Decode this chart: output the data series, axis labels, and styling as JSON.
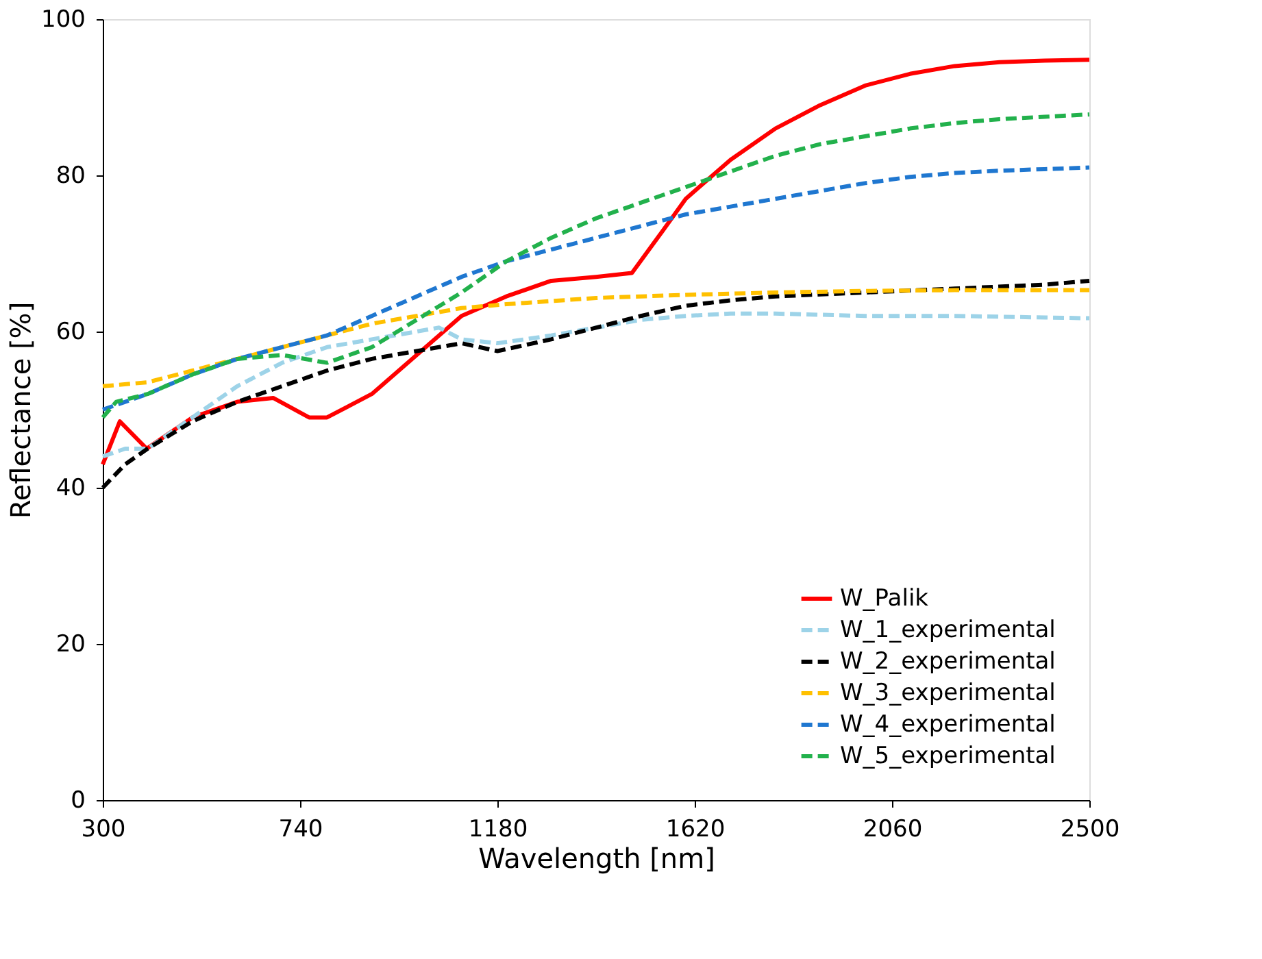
{
  "chart_data": {
    "type": "line",
    "xlabel": "Wavelength [nm]",
    "ylabel": "Reflectance [%]",
    "xlim": [
      300,
      2500
    ],
    "ylim": [
      0,
      100
    ],
    "xticks": [
      300,
      740,
      1180,
      1620,
      2060,
      2500
    ],
    "yticks": [
      0,
      20,
      40,
      60,
      80,
      100
    ],
    "grid": false,
    "legend": "bottom right",
    "marker": "none",
    "series": [
      {
        "name": "W_Palik",
        "color": "#ff0000",
        "line_style": "solid",
        "x": [
          300,
          338,
          398,
          500,
          600,
          680,
          760,
          800,
          900,
          1000,
          1100,
          1200,
          1300,
          1400,
          1480,
          1550,
          1600,
          1700,
          1800,
          1900,
          2000,
          2100,
          2200,
          2300,
          2400,
          2500
        ],
        "values": [
          43,
          48.5,
          45,
          49,
          51,
          51.5,
          49,
          49,
          52,
          57,
          62,
          64.5,
          66.5,
          67,
          67.5,
          73,
          77,
          82,
          86,
          89,
          91.5,
          93,
          94,
          94.5,
          94.7,
          94.8
        ]
      },
      {
        "name": "W_1_experimental",
        "color": "#9dd3e8",
        "line_style": "dashed",
        "x": [
          300,
          350,
          400,
          500,
          600,
          700,
          800,
          900,
          1000,
          1050,
          1100,
          1180,
          1300,
          1400,
          1500,
          1600,
          1700,
          1800,
          2000,
          2200,
          2500
        ],
        "values": [
          44,
          45,
          45,
          49,
          53,
          56,
          58,
          59,
          60,
          60.5,
          59,
          58.5,
          59.5,
          60.5,
          61.5,
          62,
          62.3,
          62.3,
          62,
          62,
          61.7
        ]
      },
      {
        "name": "W_2_experimental",
        "color": "#000000",
        "line_style": "dashed",
        "x": [
          300,
          350,
          400,
          500,
          600,
          700,
          800,
          900,
          1000,
          1100,
          1180,
          1300,
          1400,
          1500,
          1600,
          1700,
          1800,
          2000,
          2200,
          2400,
          2500
        ],
        "values": [
          40,
          43,
          45,
          48.5,
          51,
          53,
          55,
          56.5,
          57.5,
          58.5,
          57.5,
          59,
          60.5,
          62,
          63.3,
          64,
          64.5,
          65,
          65.5,
          66,
          66.5
        ]
      },
      {
        "name": "W_3_experimental",
        "color": "#ffc000",
        "line_style": "dashed",
        "x": [
          300,
          400,
          500,
          600,
          700,
          800,
          900,
          1000,
          1100,
          1200,
          1400,
          1600,
          1800,
          2000,
          2200,
          2500
        ],
        "values": [
          53,
          53.5,
          55,
          56.5,
          58,
          59.5,
          61,
          62,
          63,
          63.5,
          64.3,
          64.7,
          65,
          65.2,
          65.3,
          65.3
        ]
      },
      {
        "name": "W_4_experimental",
        "color": "#1f77d0",
        "line_style": "dashed",
        "x": [
          300,
          400,
          500,
          600,
          700,
          800,
          900,
          1000,
          1100,
          1200,
          1300,
          1400,
          1500,
          1600,
          1700,
          1800,
          1900,
          2000,
          2100,
          2200,
          2300,
          2400,
          2500
        ],
        "values": [
          50,
          52,
          54.5,
          56.5,
          58,
          59.5,
          62,
          64.5,
          67,
          69,
          70.5,
          72,
          73.5,
          75,
          76,
          77,
          78,
          79,
          79.8,
          80.3,
          80.6,
          80.8,
          81
        ]
      },
      {
        "name": "W_5_experimental",
        "color": "#22b14c",
        "line_style": "dashed",
        "x": [
          300,
          330,
          400,
          500,
          600,
          700,
          800,
          900,
          1000,
          1100,
          1200,
          1300,
          1400,
          1500,
          1600,
          1700,
          1800,
          1900,
          2000,
          2100,
          2200,
          2300,
          2400,
          2500
        ],
        "values": [
          49,
          51,
          52,
          54.5,
          56.5,
          57,
          56,
          58,
          61.5,
          65,
          69,
          72,
          74.5,
          76.5,
          78.5,
          80.5,
          82.5,
          84,
          85,
          86,
          86.7,
          87.2,
          87.5,
          87.8
        ]
      }
    ]
  }
}
